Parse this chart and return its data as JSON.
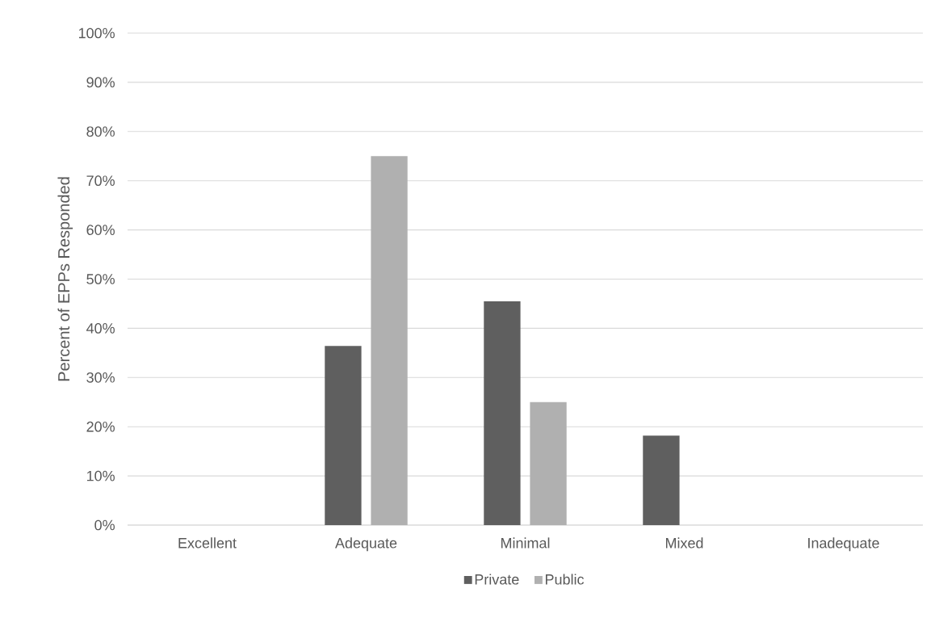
{
  "chart_data": {
    "type": "bar",
    "ylabel": "Percent of EPPs Responded",
    "categories": [
      "Excellent",
      "Adequate",
      "Minimal",
      "Mixed",
      "Inadequate"
    ],
    "series": [
      {
        "name": "Private",
        "color": "#5f5f5f",
        "values": [
          0,
          36.4,
          45.5,
          18.2,
          0
        ]
      },
      {
        "name": "Public",
        "color": "#b0b0b0",
        "values": [
          0,
          75,
          25,
          0,
          0
        ]
      }
    ],
    "ylim": [
      0,
      100
    ],
    "yticks": [
      {
        "value": 0,
        "label": "0%"
      },
      {
        "value": 10,
        "label": "10%"
      },
      {
        "value": 20,
        "label": "20%"
      },
      {
        "value": 30,
        "label": "30%"
      },
      {
        "value": 40,
        "label": "40%"
      },
      {
        "value": 50,
        "label": "50%"
      },
      {
        "value": 60,
        "label": "60%"
      },
      {
        "value": 70,
        "label": "70%"
      },
      {
        "value": 80,
        "label": "80%"
      },
      {
        "value": 90,
        "label": "90%"
      },
      {
        "value": 100,
        "label": "100%"
      }
    ],
    "grid": "y",
    "legend": "bottom"
  }
}
